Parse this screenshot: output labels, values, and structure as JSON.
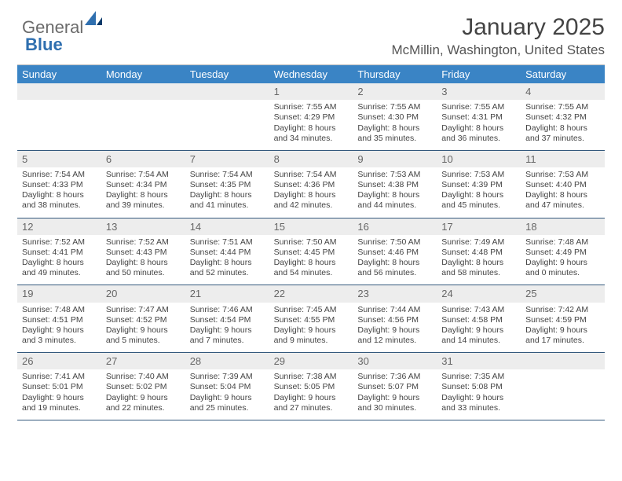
{
  "brand": {
    "word1": "General",
    "word2": "Blue"
  },
  "header": {
    "title": "January 2025",
    "subtitle": "McMillin, Washington, United States"
  },
  "colors": {
    "header_bg": "#3a84c5",
    "header_text": "#ffffff",
    "daynum_bg": "#ededed",
    "week_border": "#34597d",
    "body_text": "#444444"
  },
  "daynames": [
    "Sunday",
    "Monday",
    "Tuesday",
    "Wednesday",
    "Thursday",
    "Friday",
    "Saturday"
  ],
  "weeks": [
    [
      {
        "num": "",
        "sunrise": "",
        "sunset": "",
        "daylight": ""
      },
      {
        "num": "",
        "sunrise": "",
        "sunset": "",
        "daylight": ""
      },
      {
        "num": "",
        "sunrise": "",
        "sunset": "",
        "daylight": ""
      },
      {
        "num": "1",
        "sunrise": "Sunrise: 7:55 AM",
        "sunset": "Sunset: 4:29 PM",
        "daylight": "Daylight: 8 hours and 34 minutes."
      },
      {
        "num": "2",
        "sunrise": "Sunrise: 7:55 AM",
        "sunset": "Sunset: 4:30 PM",
        "daylight": "Daylight: 8 hours and 35 minutes."
      },
      {
        "num": "3",
        "sunrise": "Sunrise: 7:55 AM",
        "sunset": "Sunset: 4:31 PM",
        "daylight": "Daylight: 8 hours and 36 minutes."
      },
      {
        "num": "4",
        "sunrise": "Sunrise: 7:55 AM",
        "sunset": "Sunset: 4:32 PM",
        "daylight": "Daylight: 8 hours and 37 minutes."
      }
    ],
    [
      {
        "num": "5",
        "sunrise": "Sunrise: 7:54 AM",
        "sunset": "Sunset: 4:33 PM",
        "daylight": "Daylight: 8 hours and 38 minutes."
      },
      {
        "num": "6",
        "sunrise": "Sunrise: 7:54 AM",
        "sunset": "Sunset: 4:34 PM",
        "daylight": "Daylight: 8 hours and 39 minutes."
      },
      {
        "num": "7",
        "sunrise": "Sunrise: 7:54 AM",
        "sunset": "Sunset: 4:35 PM",
        "daylight": "Daylight: 8 hours and 41 minutes."
      },
      {
        "num": "8",
        "sunrise": "Sunrise: 7:54 AM",
        "sunset": "Sunset: 4:36 PM",
        "daylight": "Daylight: 8 hours and 42 minutes."
      },
      {
        "num": "9",
        "sunrise": "Sunrise: 7:53 AM",
        "sunset": "Sunset: 4:38 PM",
        "daylight": "Daylight: 8 hours and 44 minutes."
      },
      {
        "num": "10",
        "sunrise": "Sunrise: 7:53 AM",
        "sunset": "Sunset: 4:39 PM",
        "daylight": "Daylight: 8 hours and 45 minutes."
      },
      {
        "num": "11",
        "sunrise": "Sunrise: 7:53 AM",
        "sunset": "Sunset: 4:40 PM",
        "daylight": "Daylight: 8 hours and 47 minutes."
      }
    ],
    [
      {
        "num": "12",
        "sunrise": "Sunrise: 7:52 AM",
        "sunset": "Sunset: 4:41 PM",
        "daylight": "Daylight: 8 hours and 49 minutes."
      },
      {
        "num": "13",
        "sunrise": "Sunrise: 7:52 AM",
        "sunset": "Sunset: 4:43 PM",
        "daylight": "Daylight: 8 hours and 50 minutes."
      },
      {
        "num": "14",
        "sunrise": "Sunrise: 7:51 AM",
        "sunset": "Sunset: 4:44 PM",
        "daylight": "Daylight: 8 hours and 52 minutes."
      },
      {
        "num": "15",
        "sunrise": "Sunrise: 7:50 AM",
        "sunset": "Sunset: 4:45 PM",
        "daylight": "Daylight: 8 hours and 54 minutes."
      },
      {
        "num": "16",
        "sunrise": "Sunrise: 7:50 AM",
        "sunset": "Sunset: 4:46 PM",
        "daylight": "Daylight: 8 hours and 56 minutes."
      },
      {
        "num": "17",
        "sunrise": "Sunrise: 7:49 AM",
        "sunset": "Sunset: 4:48 PM",
        "daylight": "Daylight: 8 hours and 58 minutes."
      },
      {
        "num": "18",
        "sunrise": "Sunrise: 7:48 AM",
        "sunset": "Sunset: 4:49 PM",
        "daylight": "Daylight: 9 hours and 0 minutes."
      }
    ],
    [
      {
        "num": "19",
        "sunrise": "Sunrise: 7:48 AM",
        "sunset": "Sunset: 4:51 PM",
        "daylight": "Daylight: 9 hours and 3 minutes."
      },
      {
        "num": "20",
        "sunrise": "Sunrise: 7:47 AM",
        "sunset": "Sunset: 4:52 PM",
        "daylight": "Daylight: 9 hours and 5 minutes."
      },
      {
        "num": "21",
        "sunrise": "Sunrise: 7:46 AM",
        "sunset": "Sunset: 4:54 PM",
        "daylight": "Daylight: 9 hours and 7 minutes."
      },
      {
        "num": "22",
        "sunrise": "Sunrise: 7:45 AM",
        "sunset": "Sunset: 4:55 PM",
        "daylight": "Daylight: 9 hours and 9 minutes."
      },
      {
        "num": "23",
        "sunrise": "Sunrise: 7:44 AM",
        "sunset": "Sunset: 4:56 PM",
        "daylight": "Daylight: 9 hours and 12 minutes."
      },
      {
        "num": "24",
        "sunrise": "Sunrise: 7:43 AM",
        "sunset": "Sunset: 4:58 PM",
        "daylight": "Daylight: 9 hours and 14 minutes."
      },
      {
        "num": "25",
        "sunrise": "Sunrise: 7:42 AM",
        "sunset": "Sunset: 4:59 PM",
        "daylight": "Daylight: 9 hours and 17 minutes."
      }
    ],
    [
      {
        "num": "26",
        "sunrise": "Sunrise: 7:41 AM",
        "sunset": "Sunset: 5:01 PM",
        "daylight": "Daylight: 9 hours and 19 minutes."
      },
      {
        "num": "27",
        "sunrise": "Sunrise: 7:40 AM",
        "sunset": "Sunset: 5:02 PM",
        "daylight": "Daylight: 9 hours and 22 minutes."
      },
      {
        "num": "28",
        "sunrise": "Sunrise: 7:39 AM",
        "sunset": "Sunset: 5:04 PM",
        "daylight": "Daylight: 9 hours and 25 minutes."
      },
      {
        "num": "29",
        "sunrise": "Sunrise: 7:38 AM",
        "sunset": "Sunset: 5:05 PM",
        "daylight": "Daylight: 9 hours and 27 minutes."
      },
      {
        "num": "30",
        "sunrise": "Sunrise: 7:36 AM",
        "sunset": "Sunset: 5:07 PM",
        "daylight": "Daylight: 9 hours and 30 minutes."
      },
      {
        "num": "31",
        "sunrise": "Sunrise: 7:35 AM",
        "sunset": "Sunset: 5:08 PM",
        "daylight": "Daylight: 9 hours and 33 minutes."
      },
      {
        "num": "",
        "sunrise": "",
        "sunset": "",
        "daylight": ""
      }
    ]
  ]
}
